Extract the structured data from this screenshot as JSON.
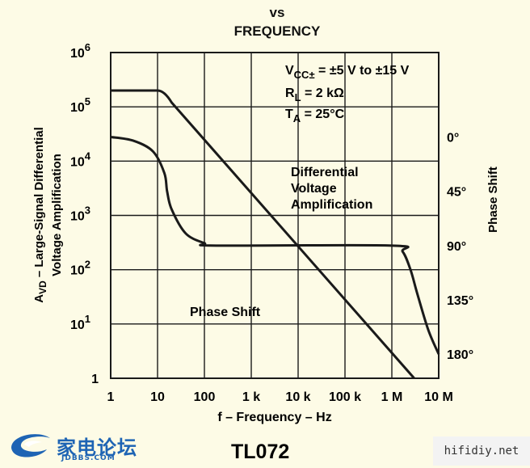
{
  "title": {
    "line1": "vs",
    "line2": "FREQUENCY"
  },
  "chart_data": {
    "type": "line",
    "x_scale": "log",
    "x_ticks": [
      "1",
      "10",
      "100",
      "1 k",
      "10 k",
      "100 k",
      "1 M",
      "10 M"
    ],
    "x_values": [
      1,
      10,
      100,
      1000,
      10000,
      100000,
      1000000,
      10000000
    ],
    "xlabel": "f – Frequency – Hz",
    "y_scale": "log",
    "y_ticks": [
      {
        "value": 1,
        "base": "1",
        "exp": ""
      },
      {
        "value": 10,
        "base": "10",
        "exp": "1"
      },
      {
        "value": 100,
        "base": "10",
        "exp": "2"
      },
      {
        "value": 1000,
        "base": "10",
        "exp": "3"
      },
      {
        "value": 10000,
        "base": "10",
        "exp": "4"
      },
      {
        "value": 100000,
        "base": "10",
        "exp": "5"
      },
      {
        "value": 1000000,
        "base": "10",
        "exp": "6"
      }
    ],
    "ylabel": {
      "line1": "A",
      "line1_sub": "VD",
      "line1_rest": " – Large-Signal Differential",
      "line2": "Voltage Amplification"
    },
    "y2_label": "Phase Shift",
    "y2_ticks": [
      "0°",
      "45°",
      "90°",
      "135°",
      "180°"
    ],
    "y2_values": [
      0,
      45,
      90,
      135,
      180
    ],
    "grid": true,
    "conditions": {
      "line1": {
        "pre": "V",
        "sub": "CC±",
        "post": " = ±5 V to ±15 V"
      },
      "line2": {
        "pre": "R",
        "sub": "L",
        "post": " = 2 kΩ"
      },
      "line3": {
        "pre": "T",
        "sub": "A",
        "post": " = 25°C"
      }
    },
    "series": [
      {
        "name": "Differential Voltage Amplification",
        "label_lines": [
          "Differential",
          "Voltage",
          "Amplification"
        ],
        "axis": "left",
        "points": [
          [
            1,
            200000
          ],
          [
            10,
            200000
          ],
          [
            14,
            180000
          ],
          [
            20,
            120000
          ],
          [
            3000000,
            1
          ]
        ]
      },
      {
        "name": "Phase Shift",
        "axis": "right",
        "points": [
          [
            1,
            0
          ],
          [
            3,
            3
          ],
          [
            8,
            12
          ],
          [
            14,
            30
          ],
          [
            16,
            45
          ],
          [
            20,
            60
          ],
          [
            40,
            80
          ],
          [
            100,
            88
          ],
          [
            180,
            90
          ],
          [
            1000000,
            90
          ],
          [
            1700000,
            95
          ],
          [
            2500000,
            110
          ],
          [
            3500000,
            130
          ],
          [
            6000000,
            160
          ],
          [
            10000000,
            180
          ]
        ]
      }
    ],
    "colors": {
      "background": "#fdfbe6",
      "line": "#1a1a1a",
      "grid": "#1a1a1a"
    }
  },
  "logo": {
    "name": "家电论坛",
    "sub": "JDBBS.COM"
  },
  "part_number": "TL072",
  "watermark": "hifidiy.net"
}
